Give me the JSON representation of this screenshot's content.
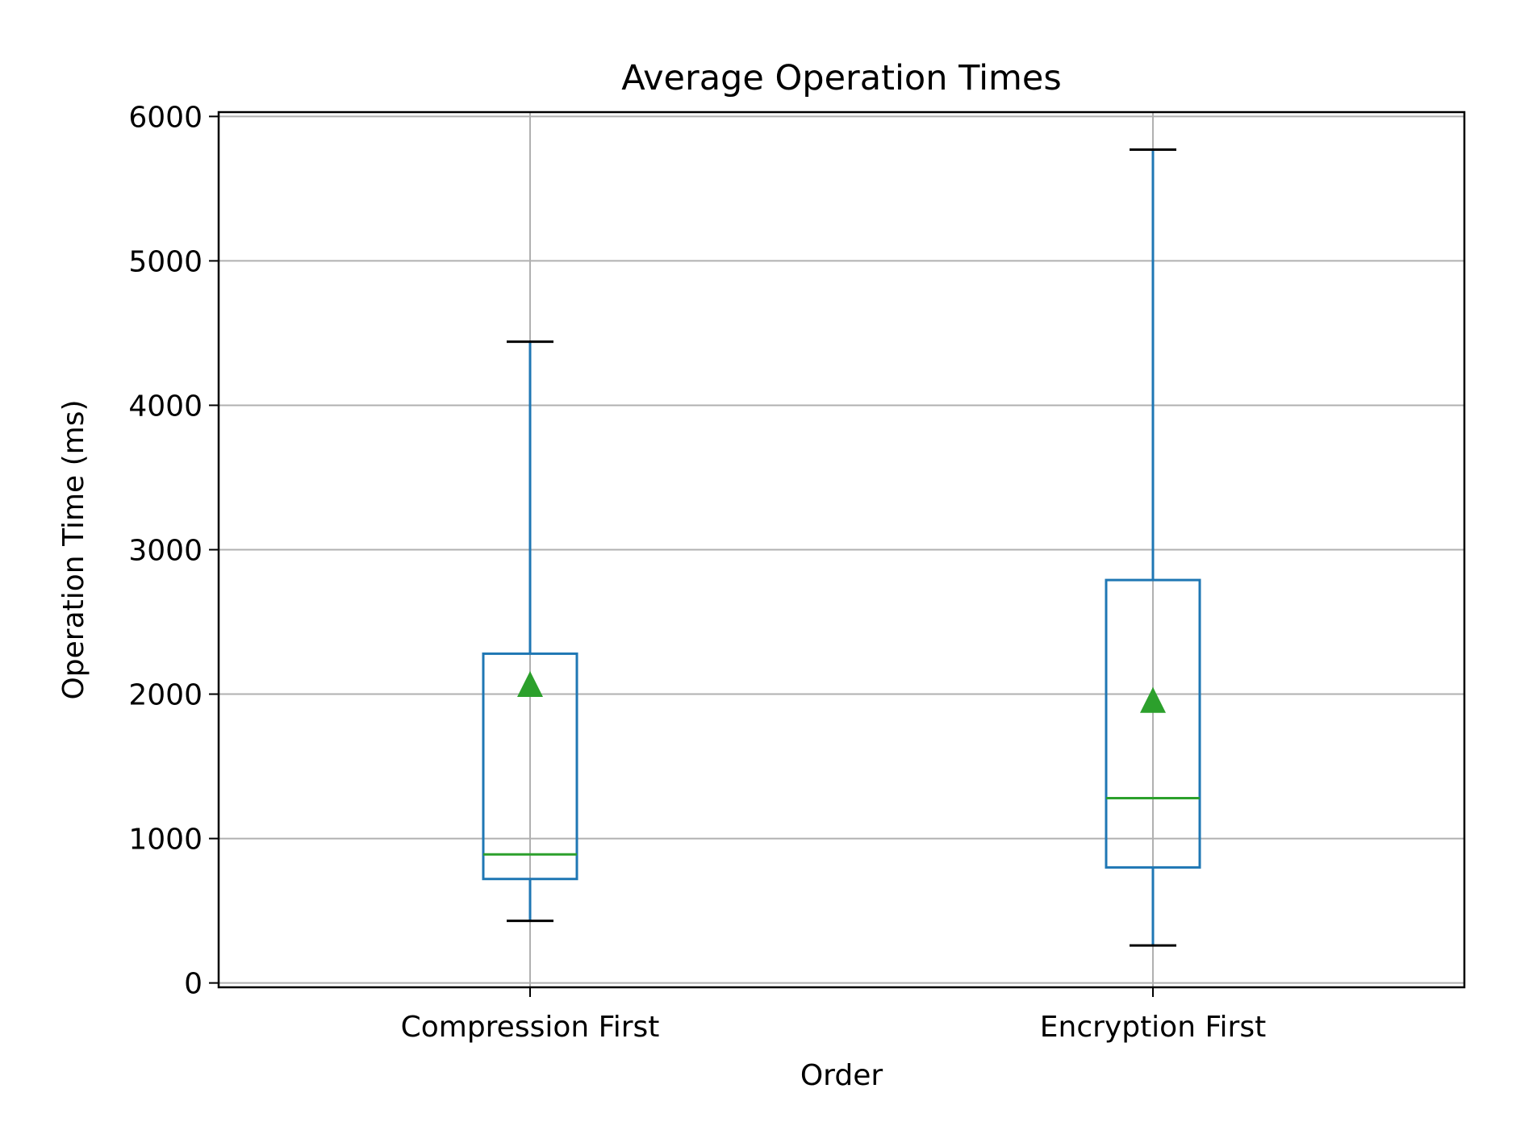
{
  "chart_data": {
    "type": "box",
    "title": "Average Operation Times",
    "xlabel": "Order",
    "ylabel": "Operation Time (ms)",
    "ylim": [
      -30,
      6030
    ],
    "yticks": [
      0,
      1000,
      2000,
      3000,
      4000,
      5000,
      6000
    ],
    "grid": true,
    "categories": [
      "Compression First",
      "Encryption First"
    ],
    "boxes": [
      {
        "category": "Compression First",
        "whisker_low": 430,
        "q1": 720,
        "median": 890,
        "q3": 2280,
        "whisker_high": 4440,
        "mean": 2070
      },
      {
        "category": "Encryption First",
        "whisker_low": 260,
        "q1": 800,
        "median": 1280,
        "q3": 2790,
        "whisker_high": 5770,
        "mean": 1960
      }
    ],
    "colors": {
      "box": "#1f77b4",
      "median": "#2ca02c",
      "mean": "#2ca02c",
      "whisker_cap": "#000000",
      "grid": "#b0b0b0"
    }
  }
}
